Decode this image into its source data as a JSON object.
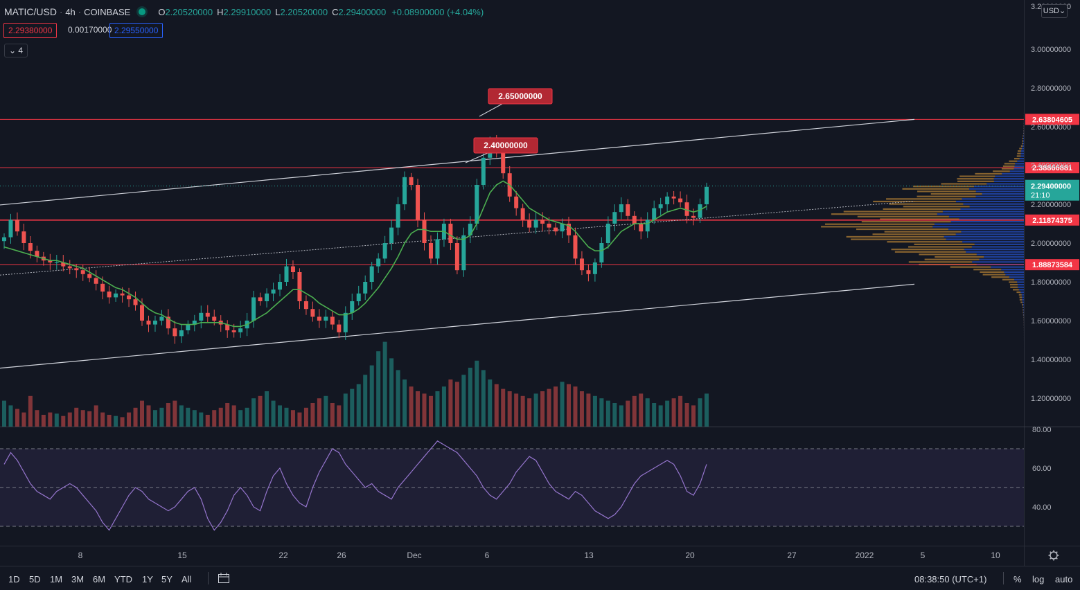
{
  "header": {
    "symbol": "MATIC/USD",
    "interval": "4h",
    "exchange": "COINBASE",
    "ohlc": [
      {
        "k": "O",
        "v": "2.20520000"
      },
      {
        "k": "H",
        "v": "2.29910000"
      },
      {
        "k": "L",
        "v": "2.20520000"
      },
      {
        "k": "C",
        "v": "2.29400000"
      }
    ],
    "change": "+0.08900000 (+4.04%)"
  },
  "price_boxes": {
    "sell": "2.29380000",
    "spread": "0.00170000",
    "buy": "2.29550000"
  },
  "indicator_badge": "4",
  "currency": "USD",
  "chart_data": {
    "type": "candlestick",
    "ylim": [
      1.07,
      3.27
    ],
    "y_ticks": [
      "1.20000000",
      "1.40000000",
      "1.60000000",
      "1.80000000",
      "2.00000000",
      "2.20000000",
      "2.40000000",
      "2.60000000",
      "2.80000000",
      "3.00000000"
    ],
    "y_tick_values": [
      1.2,
      1.4,
      1.6,
      1.8,
      2.0,
      2.2,
      2.4,
      2.6,
      2.8,
      3.0
    ],
    "top_tick_partial": "3.20000000",
    "x_ticks": [
      {
        "label": "8",
        "x": 116
      },
      {
        "label": "15",
        "x": 263
      },
      {
        "label": "22",
        "x": 409
      },
      {
        "label": "26",
        "x": 493
      },
      {
        "label": "Dec",
        "x": 598
      },
      {
        "label": "6",
        "x": 703
      },
      {
        "label": "13",
        "x": 850
      },
      {
        "label": "20",
        "x": 996
      },
      {
        "label": "27",
        "x": 1143
      },
      {
        "label": "2022",
        "x": 1248
      },
      {
        "label": "5",
        "x": 1332
      },
      {
        "label": "10",
        "x": 1437
      }
    ],
    "horizontal_levels": [
      2.638,
      2.3887,
      2.1187,
      1.8887
    ],
    "level_labels": [
      "2.63804605",
      "2.38866881",
      "2.11874375",
      "1.88873584"
    ],
    "last_price": 2.294,
    "last_price_label": "2.29400000",
    "countdown": "21:10",
    "annotations": [
      {
        "text": "2.65000000",
        "price": 2.65
      },
      {
        "text": "2.40000000",
        "price": 2.4
      }
    ],
    "close_series": [
      2.03,
      2.12,
      2.06,
      2.0,
      1.96,
      1.93,
      1.91,
      1.9,
      1.9,
      1.88,
      1.87,
      1.86,
      1.84,
      1.82,
      1.79,
      1.75,
      1.72,
      1.74,
      1.73,
      1.71,
      1.68,
      1.6,
      1.58,
      1.6,
      1.62,
      1.56,
      1.52,
      1.55,
      1.58,
      1.6,
      1.64,
      1.62,
      1.6,
      1.58,
      1.55,
      1.54,
      1.56,
      1.6,
      1.72,
      1.7,
      1.74,
      1.76,
      1.8,
      1.88,
      1.85,
      1.7,
      1.66,
      1.62,
      1.6,
      1.62,
      1.58,
      1.54,
      1.64,
      1.7,
      1.74,
      1.8,
      1.88,
      1.92,
      2.0,
      2.08,
      2.2,
      2.34,
      2.3,
      2.12,
      2.0,
      1.92,
      2.02,
      2.1,
      2.0,
      1.86,
      2.04,
      2.1,
      2.3,
      2.44,
      2.52,
      2.48,
      2.36,
      2.24,
      2.18,
      2.12,
      2.08,
      2.12,
      2.1,
      2.08,
      2.06,
      2.1,
      2.04,
      1.92,
      1.86,
      1.84,
      1.9,
      2.0,
      2.1,
      2.16,
      2.2,
      2.14,
      2.1,
      2.06,
      2.12,
      2.18,
      2.2,
      2.24,
      2.23,
      2.21,
      2.14,
      2.13,
      2.2,
      2.29
    ],
    "ma_series": [
      1.98,
      1.97,
      1.96,
      1.95,
      1.94,
      1.93,
      1.92,
      1.91,
      1.91,
      1.9,
      1.89,
      1.88,
      1.87,
      1.85,
      1.83,
      1.81,
      1.79,
      1.77,
      1.76,
      1.74,
      1.72,
      1.69,
      1.66,
      1.64,
      1.63,
      1.61,
      1.59,
      1.58,
      1.58,
      1.58,
      1.59,
      1.59,
      1.59,
      1.59,
      1.58,
      1.57,
      1.57,
      1.58,
      1.6,
      1.62,
      1.64,
      1.67,
      1.7,
      1.73,
      1.76,
      1.76,
      1.74,
      1.72,
      1.69,
      1.67,
      1.65,
      1.63,
      1.63,
      1.64,
      1.66,
      1.69,
      1.73,
      1.77,
      1.82,
      1.87,
      1.93,
      2.0,
      2.05,
      2.07,
      2.07,
      2.06,
      2.06,
      2.06,
      2.04,
      2.02,
      2.02,
      2.04,
      2.1,
      2.18,
      2.26,
      2.3,
      2.32,
      2.3,
      2.26,
      2.22,
      2.18,
      2.16,
      2.14,
      2.12,
      2.11,
      2.1,
      2.09,
      2.06,
      2.02,
      1.98,
      1.96,
      1.96,
      1.98,
      2.02,
      2.06,
      2.08,
      2.1,
      2.1,
      2.1,
      2.12,
      2.14,
      2.16,
      2.17,
      2.18,
      2.17,
      2.16,
      2.17,
      2.19
    ]
  },
  "rsi": {
    "ticks": [
      "80.00",
      "60.00",
      "40.00"
    ],
    "tick_values": [
      80,
      60,
      40
    ],
    "levels": [
      70,
      50,
      30
    ],
    "ylim": [
      20,
      80
    ],
    "values": [
      62,
      68,
      64,
      58,
      52,
      48,
      46,
      44,
      48,
      50,
      52,
      50,
      46,
      42,
      38,
      32,
      28,
      34,
      40,
      46,
      50,
      48,
      44,
      42,
      40,
      38,
      40,
      44,
      48,
      50,
      44,
      34,
      28,
      32,
      38,
      46,
      50,
      46,
      40,
      38,
      48,
      56,
      60,
      52,
      46,
      42,
      40,
      50,
      58,
      64,
      70,
      68,
      62,
      58,
      54,
      50,
      52,
      48,
      46,
      44,
      50,
      54,
      58,
      62,
      66,
      70,
      74,
      72,
      70,
      68,
      64,
      60,
      56,
      50,
      46,
      44,
      48,
      52,
      58,
      62,
      66,
      64,
      58,
      52,
      48,
      46,
      44,
      48,
      46,
      42,
      38,
      36,
      34,
      36,
      40,
      46,
      52,
      56,
      58,
      60,
      62,
      64,
      62,
      56,
      48,
      46,
      52,
      62
    ]
  },
  "volume": {
    "values": [
      22,
      18,
      15,
      12,
      26,
      14,
      10,
      12,
      11,
      9,
      12,
      16,
      14,
      13,
      18,
      12,
      10,
      9,
      8,
      12,
      16,
      22,
      18,
      14,
      16,
      20,
      22,
      18,
      16,
      14,
      12,
      10,
      14,
      16,
      20,
      18,
      14,
      16,
      24,
      26,
      30,
      22,
      18,
      16,
      14,
      12,
      16,
      20,
      24,
      26,
      20,
      18,
      28,
      32,
      36,
      44,
      52,
      64,
      72,
      58,
      48,
      40,
      34,
      30,
      28,
      26,
      30,
      34,
      40,
      38,
      44,
      50,
      56,
      48,
      40,
      36,
      32,
      30,
      28,
      26,
      24,
      28,
      30,
      32,
      34,
      38,
      36,
      34,
      30,
      28,
      26,
      24,
      22,
      20,
      18,
      22,
      26,
      28,
      24,
      20,
      18,
      22,
      24,
      26,
      20,
      18,
      24,
      28
    ]
  },
  "time_axis_settings_icon": "gear-icon",
  "bottom_bar": {
    "ranges": [
      "1D",
      "5D",
      "1M",
      "3M",
      "6M",
      "YTD",
      "1Y",
      "5Y",
      "All"
    ],
    "compare_icon": "date-range-icon",
    "clock": "08:38:50 (UTC+1)",
    "percent": "%",
    "log": "log",
    "auto": "auto"
  }
}
